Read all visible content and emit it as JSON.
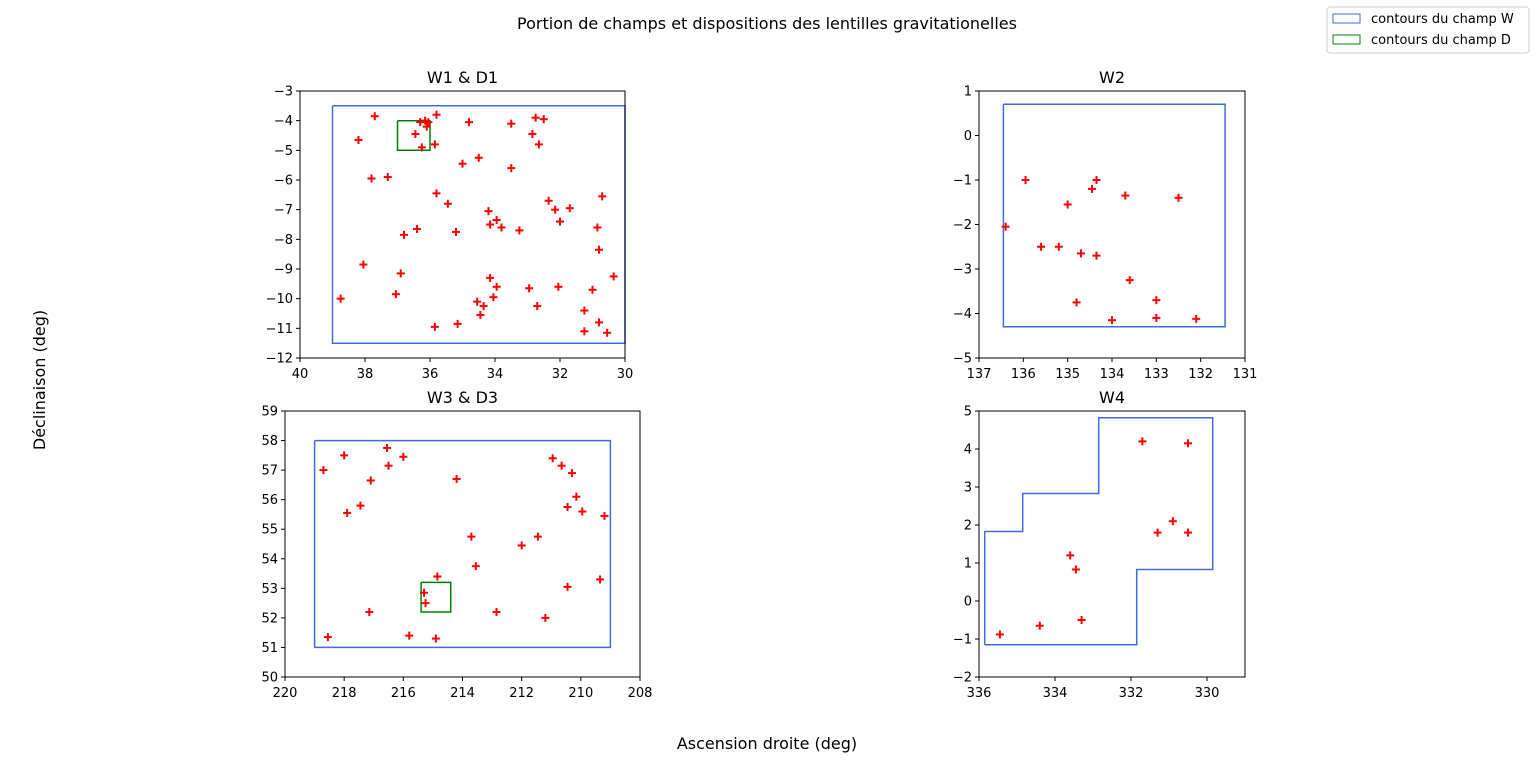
{
  "figure": {
    "title": "Portion de champs et dispositions des lentilles gravitationelles",
    "xlabel": "Ascension droite (deg)",
    "ylabel": "Déclinaison (deg)"
  },
  "legend": {
    "placement": "top-right",
    "entries": [
      {
        "label": "contours du champ W",
        "color": "#4169e1"
      },
      {
        "label": "contours du champ D",
        "color": "#008000"
      }
    ]
  },
  "chart_data": [
    {
      "type": "scatter",
      "title": "W1 & D1",
      "xlim": [
        40,
        30
      ],
      "ylim": [
        -12,
        -3
      ],
      "xticks": [
        40,
        38,
        36,
        34,
        32,
        30
      ],
      "yticks": [
        -12,
        -11,
        -10,
        -9,
        -8,
        -7,
        -6,
        -5,
        -4,
        -3
      ],
      "marker_color": "#ff0000",
      "contours": [
        {
          "field": "W",
          "color": "#4169e1",
          "points": [
            [
              39,
              -3.5
            ],
            [
              30,
              -3.5
            ],
            [
              30,
              -11.5
            ],
            [
              39,
              -11.5
            ],
            [
              39,
              -3.5
            ]
          ]
        },
        {
          "field": "D",
          "color": "#008000",
          "points": [
            [
              37,
              -4.0
            ],
            [
              36,
              -4.0
            ],
            [
              36,
              -5.0
            ],
            [
              37,
              -5.0
            ],
            [
              37,
              -4.0
            ]
          ]
        }
      ],
      "points": [
        [
          37.7,
          -3.85
        ],
        [
          35.8,
          -3.8
        ],
        [
          36.3,
          -4.05
        ],
        [
          36.15,
          -4.0
        ],
        [
          36.05,
          -4.05
        ],
        [
          36.1,
          -4.2
        ],
        [
          36.45,
          -4.45
        ],
        [
          35.85,
          -4.8
        ],
        [
          36.25,
          -4.9
        ],
        [
          38.2,
          -4.65
        ],
        [
          34.8,
          -4.05
        ],
        [
          33.5,
          -4.1
        ],
        [
          32.75,
          -3.9
        ],
        [
          32.5,
          -3.95
        ],
        [
          32.85,
          -4.45
        ],
        [
          32.65,
          -4.8
        ],
        [
          34.5,
          -5.25
        ],
        [
          35.0,
          -5.45
        ],
        [
          33.5,
          -5.6
        ],
        [
          37.8,
          -5.95
        ],
        [
          37.3,
          -5.9
        ],
        [
          35.8,
          -6.45
        ],
        [
          35.45,
          -6.8
        ],
        [
          32.35,
          -6.7
        ],
        [
          31.7,
          -6.95
        ],
        [
          30.7,
          -6.55
        ],
        [
          34.2,
          -7.05
        ],
        [
          33.95,
          -7.35
        ],
        [
          34.15,
          -7.5
        ],
        [
          33.8,
          -7.6
        ],
        [
          33.25,
          -7.7
        ],
        [
          35.2,
          -7.75
        ],
        [
          36.4,
          -7.65
        ],
        [
          36.8,
          -7.85
        ],
        [
          32.15,
          -7.0
        ],
        [
          32.0,
          -7.4
        ],
        [
          30.85,
          -7.6
        ],
        [
          30.8,
          -8.35
        ],
        [
          38.05,
          -8.85
        ],
        [
          36.9,
          -9.15
        ],
        [
          30.35,
          -9.25
        ],
        [
          34.15,
          -9.3
        ],
        [
          33.95,
          -9.6
        ],
        [
          32.05,
          -9.6
        ],
        [
          32.95,
          -9.65
        ],
        [
          31.0,
          -9.7
        ],
        [
          37.05,
          -9.85
        ],
        [
          38.75,
          -10.0
        ],
        [
          34.05,
          -9.95
        ],
        [
          34.55,
          -10.1
        ],
        [
          34.35,
          -10.25
        ],
        [
          32.7,
          -10.25
        ],
        [
          31.25,
          -10.4
        ],
        [
          34.45,
          -10.55
        ],
        [
          30.8,
          -10.8
        ],
        [
          35.85,
          -10.95
        ],
        [
          35.15,
          -10.85
        ],
        [
          31.25,
          -11.1
        ],
        [
          30.55,
          -11.15
        ]
      ]
    },
    {
      "type": "scatter",
      "title": "W2",
      "xlim": [
        137,
        131
      ],
      "ylim": [
        -5,
        1
      ],
      "xticks": [
        137,
        136,
        135,
        134,
        133,
        132,
        131
      ],
      "yticks": [
        -5,
        -4,
        -3,
        -2,
        -1,
        0,
        1
      ],
      "marker_color": "#ff0000",
      "contours": [
        {
          "field": "W",
          "color": "#4169e1",
          "points": [
            [
              136.45,
              0.7
            ],
            [
              131.45,
              0.7
            ],
            [
              131.45,
              -4.3
            ],
            [
              136.45,
              -4.3
            ],
            [
              136.45,
              0.7
            ]
          ]
        }
      ],
      "points": [
        [
          135.95,
          -1.0
        ],
        [
          134.35,
          -1.0
        ],
        [
          134.45,
          -1.2
        ],
        [
          133.7,
          -1.35
        ],
        [
          132.5,
          -1.4
        ],
        [
          135.0,
          -1.55
        ],
        [
          136.4,
          -2.05
        ],
        [
          135.6,
          -2.5
        ],
        [
          135.2,
          -2.5
        ],
        [
          134.7,
          -2.65
        ],
        [
          134.35,
          -2.7
        ],
        [
          133.6,
          -3.25
        ],
        [
          134.8,
          -3.75
        ],
        [
          133.0,
          -3.7
        ],
        [
          134.0,
          -4.15
        ],
        [
          133.0,
          -4.1
        ],
        [
          132.1,
          -4.12
        ]
      ]
    },
    {
      "type": "scatter",
      "title": "W3 & D3",
      "xlim": [
        220,
        208
      ],
      "ylim": [
        50,
        59
      ],
      "xticks": [
        220,
        218,
        216,
        214,
        212,
        210,
        208
      ],
      "yticks": [
        50,
        51,
        52,
        53,
        54,
        55,
        56,
        57,
        58,
        59
      ],
      "marker_color": "#ff0000",
      "contours": [
        {
          "field": "W",
          "color": "#4169e1",
          "points": [
            [
              219,
              58
            ],
            [
              209,
              58
            ],
            [
              209,
              51
            ],
            [
              219,
              51
            ],
            [
              219,
              58
            ]
          ]
        },
        {
          "field": "D",
          "color": "#008000",
          "points": [
            [
              215.4,
              53.2
            ],
            [
              214.4,
              53.2
            ],
            [
              214.4,
              52.2
            ],
            [
              215.4,
              52.2
            ],
            [
              215.4,
              53.2
            ]
          ]
        }
      ],
      "points": [
        [
          218.7,
          57.0
        ],
        [
          218.0,
          57.5
        ],
        [
          216.55,
          57.75
        ],
        [
          216.5,
          57.15
        ],
        [
          216.0,
          57.45
        ],
        [
          217.1,
          56.65
        ],
        [
          214.2,
          56.7
        ],
        [
          217.9,
          55.55
        ],
        [
          217.45,
          55.8
        ],
        [
          210.95,
          57.4
        ],
        [
          210.65,
          57.15
        ],
        [
          210.3,
          56.9
        ],
        [
          210.15,
          56.1
        ],
        [
          210.45,
          55.75
        ],
        [
          209.95,
          55.6
        ],
        [
          209.2,
          55.45
        ],
        [
          213.7,
          54.75
        ],
        [
          211.45,
          54.75
        ],
        [
          212.0,
          54.45
        ],
        [
          213.55,
          53.75
        ],
        [
          214.85,
          53.4
        ],
        [
          215.3,
          52.85
        ],
        [
          215.25,
          52.5
        ],
        [
          209.35,
          53.3
        ],
        [
          210.45,
          53.05
        ],
        [
          217.15,
          52.2
        ],
        [
          212.85,
          52.2
        ],
        [
          211.2,
          52.0
        ],
        [
          218.55,
          51.35
        ],
        [
          215.8,
          51.4
        ],
        [
          214.9,
          51.3
        ]
      ]
    },
    {
      "type": "scatter",
      "title": "W4",
      "xlim": [
        336,
        329
      ],
      "ylim": [
        -2,
        5
      ],
      "xticks": [
        336,
        334,
        332,
        330
      ],
      "yticks": [
        -2,
        -1,
        0,
        1,
        2,
        3,
        4,
        5
      ],
      "marker_color": "#ff0000",
      "contours": [
        {
          "field": "W",
          "color": "#4169e1",
          "points": [
            [
              335.85,
              -1.15
            ],
            [
              335.85,
              1.83
            ],
            [
              334.85,
              1.83
            ],
            [
              334.85,
              2.83
            ],
            [
              332.85,
              2.83
            ],
            [
              332.85,
              4.82
            ],
            [
              329.85,
              4.82
            ],
            [
              329.85,
              0.83
            ],
            [
              331.85,
              0.83
            ],
            [
              331.85,
              -1.15
            ],
            [
              335.85,
              -1.15
            ]
          ]
        }
      ],
      "points": [
        [
          331.7,
          4.2
        ],
        [
          330.5,
          4.15
        ],
        [
          333.6,
          1.2
        ],
        [
          333.45,
          0.83
        ],
        [
          331.3,
          1.8
        ],
        [
          330.9,
          2.1
        ],
        [
          330.5,
          1.8
        ],
        [
          335.45,
          -0.88
        ],
        [
          334.4,
          -0.65
        ],
        [
          333.3,
          -0.5
        ]
      ]
    }
  ]
}
